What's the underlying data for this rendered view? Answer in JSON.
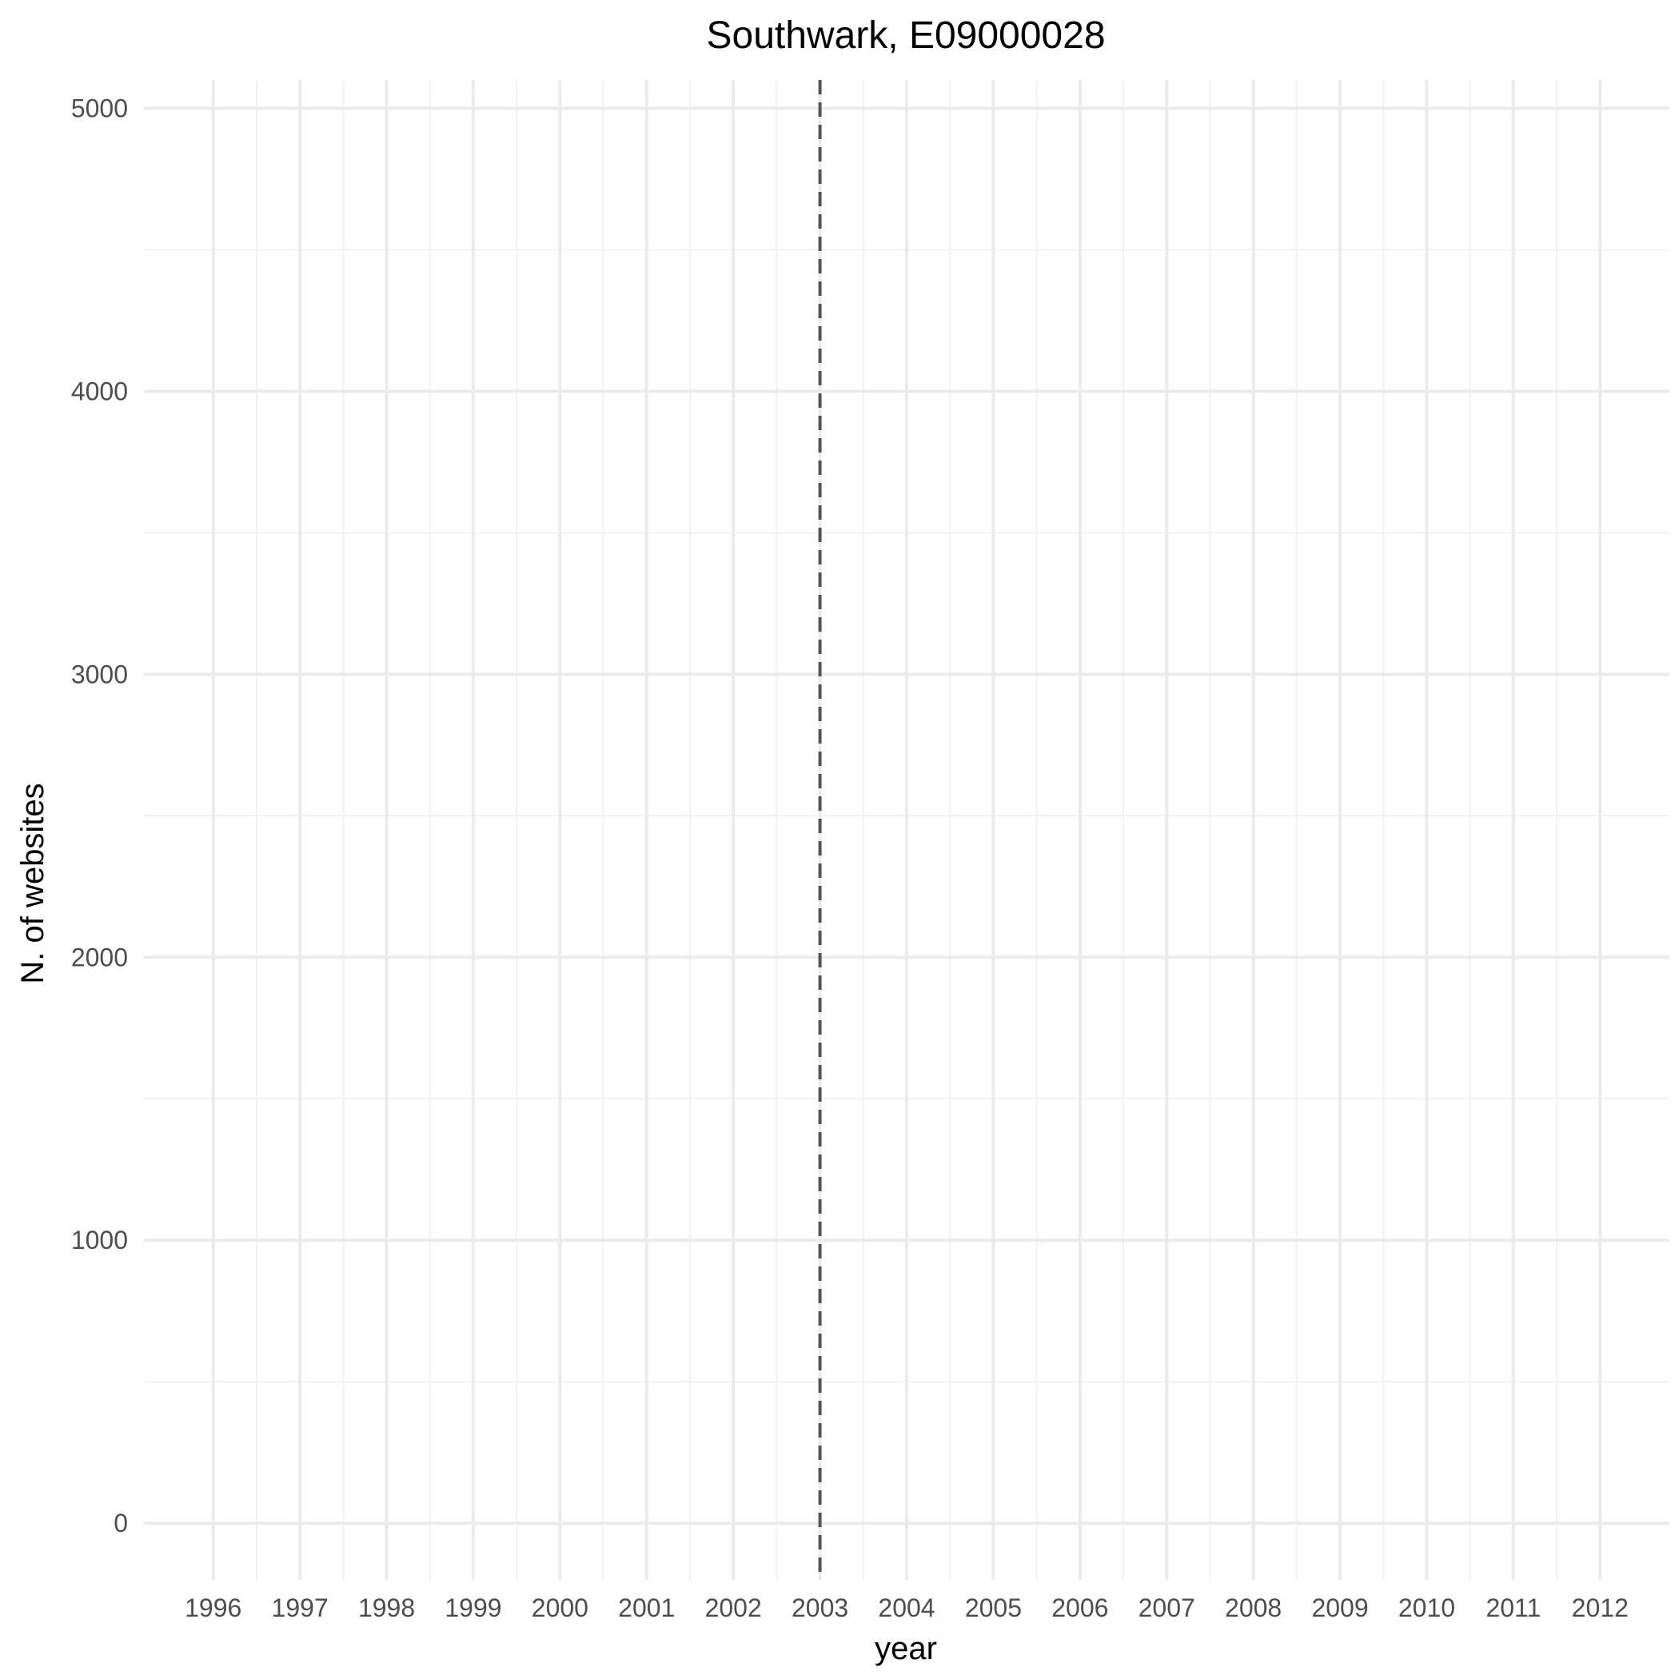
{
  "chart_data": {
    "type": "line",
    "title": "Southwark, E09000028",
    "xlabel": "year",
    "ylabel": "N. of websites",
    "x_ticks": [
      "1996",
      "1997",
      "1998",
      "1999",
      "2000",
      "2001",
      "2002",
      "2003",
      "2004",
      "2005",
      "2006",
      "2007",
      "2008",
      "2009",
      "2010",
      "2011",
      "2012"
    ],
    "y_ticks": [
      0,
      1000,
      2000,
      3000,
      4000,
      5000
    ],
    "xlim": [
      1995.2,
      2012.8
    ],
    "ylim": [
      -200,
      5100
    ],
    "grid": true,
    "series": [],
    "reference_line": {
      "x": 2003,
      "style": "dashed",
      "color": "#555555"
    }
  }
}
